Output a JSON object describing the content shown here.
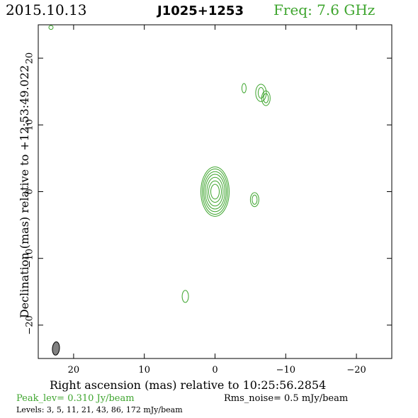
{
  "header": {
    "date": "2015.10.13",
    "source": "J1025+1253",
    "freq": "Freq: 7.6 GHz"
  },
  "footer": {
    "peak": "Peak_lev=  0.310 Jy/beam",
    "rms": "Rms_noise=  0.5 mJy/beam",
    "levels": "Levels:   3,    5,   11,   21,   43,   86, 172 mJy/beam"
  },
  "chart_data": {
    "type": "contour",
    "xlabel": "Right ascension (mas) relative to 10:25:56.2854",
    "ylabel": "Declination (mas) relative to +12:53:49.022",
    "xlim": [
      25,
      -25
    ],
    "ylim": [
      -25,
      25
    ],
    "xticks": [
      20,
      10,
      0,
      -10,
      -20
    ],
    "yticks": [
      20,
      10,
      0,
      -10,
      -20
    ],
    "tick_labels_x": [
      "20",
      "10",
      "0",
      "−10",
      "−20"
    ],
    "tick_labels_y": [
      "20",
      "10",
      "0",
      "−10",
      "−20"
    ],
    "contour_color": "#3ea52e",
    "beam_color": "#808080",
    "beam": {
      "x": 22.5,
      "y": -23.5,
      "major": 2.0,
      "minor": 1.0,
      "pa_deg": 5
    },
    "components": [
      {
        "x": 0.0,
        "y": 0.0,
        "radii": [
          [
            0.6,
            1.1
          ],
          [
            0.9,
            1.6
          ],
          [
            1.15,
            2.15
          ],
          [
            1.4,
            2.6
          ],
          [
            1.6,
            3.0
          ],
          [
            1.8,
            3.4
          ],
          [
            2.0,
            3.7
          ]
        ]
      },
      {
        "x": -5.6,
        "y": -1.2,
        "radii": [
          [
            0.35,
            0.7
          ],
          [
            0.6,
            1.05
          ]
        ]
      },
      {
        "x": -6.5,
        "y": 14.8,
        "radii": [
          [
            0.4,
            0.8
          ],
          [
            0.75,
            1.3
          ]
        ]
      },
      {
        "x": -7.2,
        "y": 14.0,
        "radii": [
          [
            0.35,
            0.7
          ],
          [
            0.6,
            1.1
          ]
        ]
      },
      {
        "x": -4.1,
        "y": 15.5,
        "radii": [
          [
            0.3,
            0.7
          ]
        ]
      },
      {
        "x": 4.2,
        "y": -15.7,
        "radii": [
          [
            0.45,
            0.9
          ]
        ]
      },
      {
        "x": 23.2,
        "y": 24.6,
        "radii": [
          [
            0.3,
            0.3
          ]
        ]
      }
    ]
  }
}
